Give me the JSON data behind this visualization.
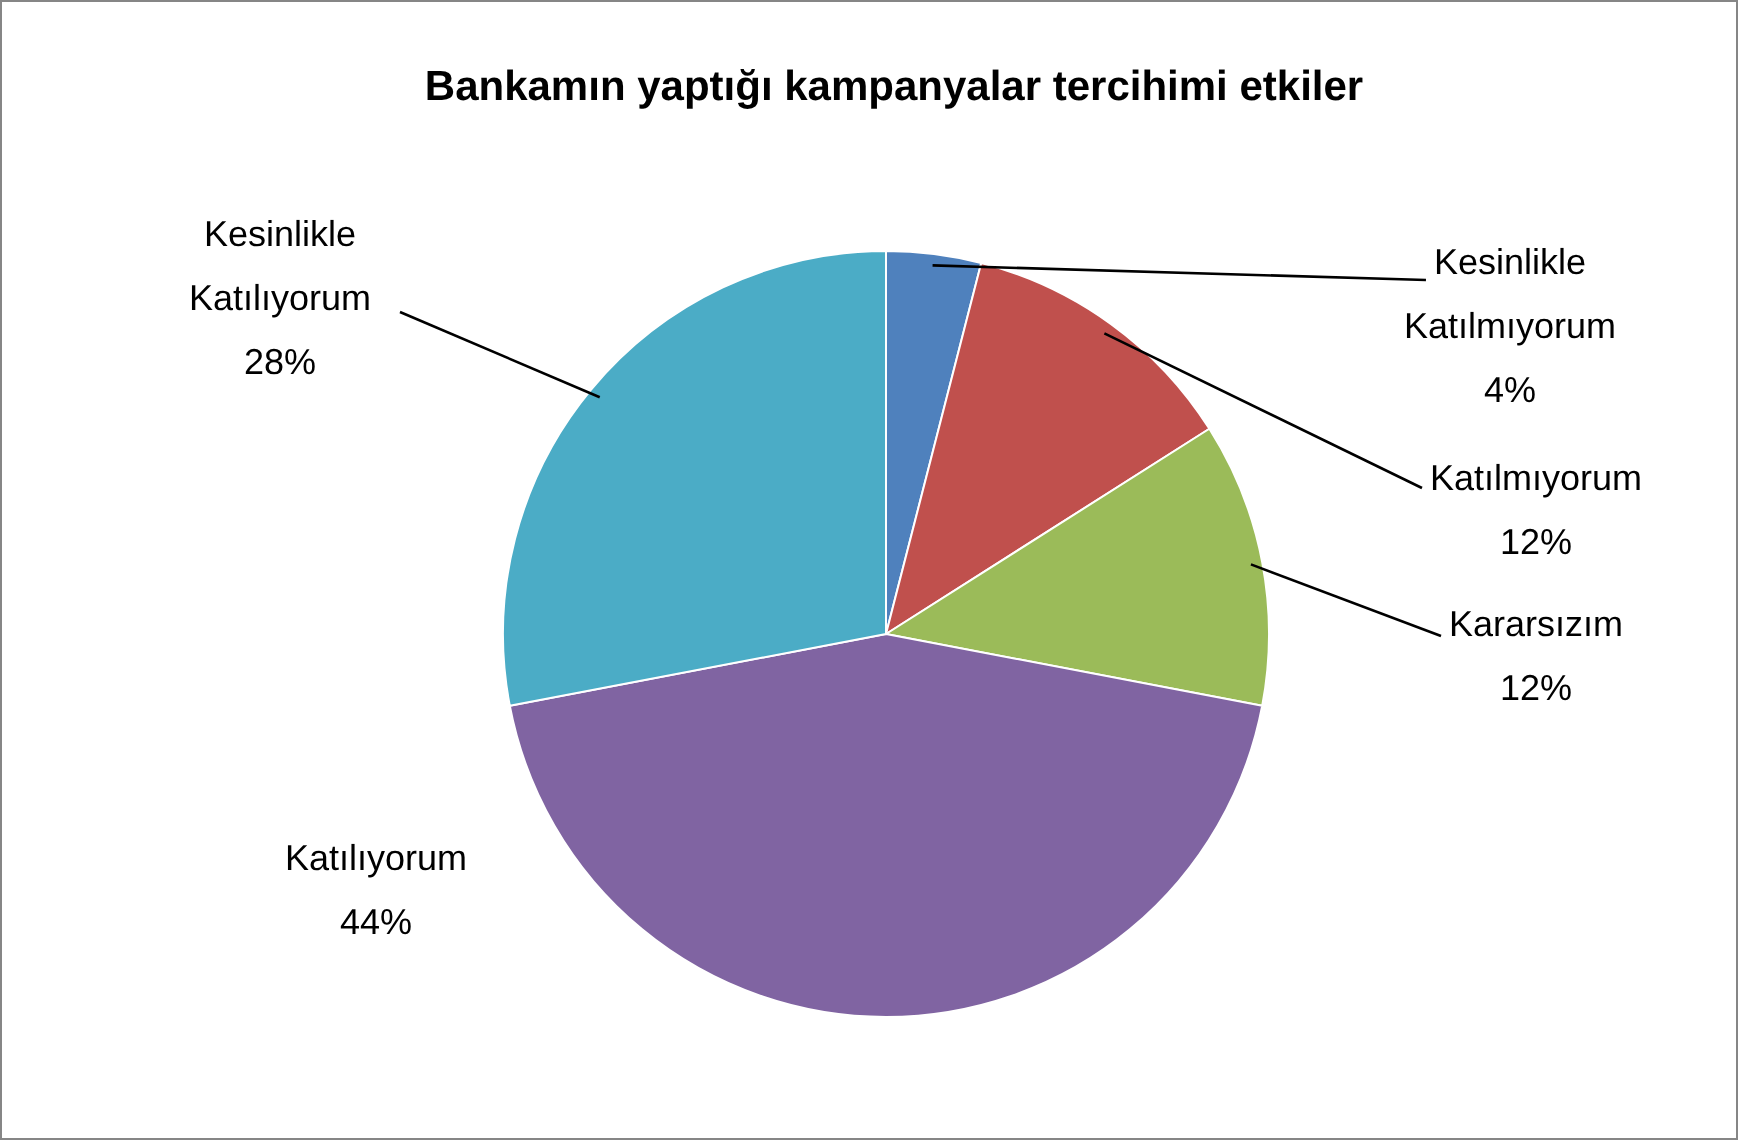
{
  "chart_data": {
    "type": "pie",
    "title": "Bankamın yaptığı kampanyalar tercihimi etkiler",
    "categories": [
      "Kesinlikle Katılmıyorum",
      "Katılmıyorum",
      "Kararsızım",
      "Katılıyorum",
      "Kesinlikle Katılıyorum"
    ],
    "values": [
      4,
      12,
      12,
      44,
      28
    ],
    "colors": [
      "#4f81bd",
      "#c0504d",
      "#9bbb59",
      "#8064a2",
      "#4bacc6"
    ],
    "value_labels": [
      "4%",
      "12%",
      "12%",
      "44%",
      "28%"
    ],
    "legend": false
  }
}
